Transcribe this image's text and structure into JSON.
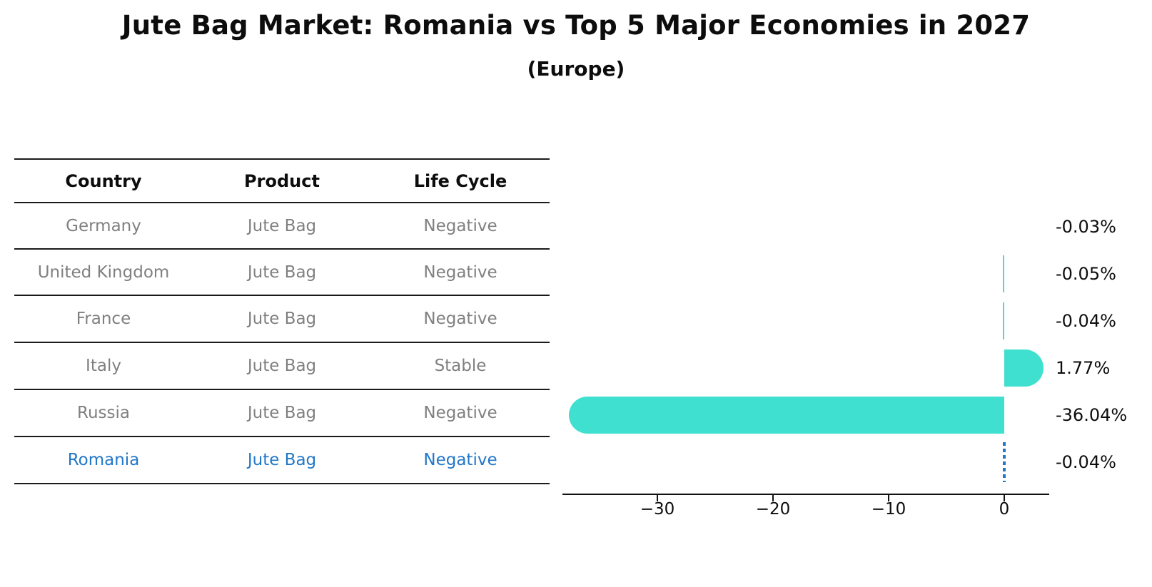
{
  "title": "Jute Bag Market: Romania vs Top 5 Major Economies in 2027",
  "subtitle": "(Europe)",
  "table": {
    "headers": [
      "Country",
      "Product",
      "Life Cycle"
    ],
    "rows": [
      {
        "country": "Germany",
        "product": "Jute Bag",
        "life_cycle": "Negative"
      },
      {
        "country": "United Kingdom",
        "product": "Jute Bag",
        "life_cycle": "Negative"
      },
      {
        "country": "France",
        "product": "Jute Bag",
        "life_cycle": "Negative"
      },
      {
        "country": "Italy",
        "product": "Jute Bag",
        "life_cycle": "Stable"
      },
      {
        "country": "Russia",
        "product": "Jute Bag",
        "life_cycle": "Negative"
      },
      {
        "country": "Romania",
        "product": "Jute Bag",
        "life_cycle": "Negative"
      }
    ],
    "highlight_row": "Romania"
  },
  "chart_data": {
    "type": "bar",
    "orientation": "horizontal",
    "title": "Jute Bag Market: Romania vs Top 5 Major Economies in 2027",
    "subtitle": "(Europe)",
    "categories": [
      "Germany",
      "United Kingdom",
      "France",
      "Italy",
      "Russia",
      "Romania"
    ],
    "values": [
      -0.03,
      -0.05,
      -0.04,
      1.77,
      -36.04,
      -0.04
    ],
    "value_labels": [
      "-0.03%",
      "-0.05%",
      "-0.04%",
      "1.77%",
      "-36.04%",
      "-0.04%"
    ],
    "bar_styles": [
      "none",
      "thin",
      "thin",
      "rounded-right",
      "rounded-left",
      "dashed-zero-marker"
    ],
    "xlabel": "",
    "ylabel": "",
    "xlim": [
      -38.2,
      3.9
    ],
    "xticks": [
      -30,
      -20,
      -10,
      0
    ],
    "xtick_labels": [
      "−30",
      "−20",
      "−10",
      "0"
    ],
    "grid": false,
    "legend": null,
    "bar_color": "#40E0D0",
    "highlight_color": "#2277c8"
  }
}
